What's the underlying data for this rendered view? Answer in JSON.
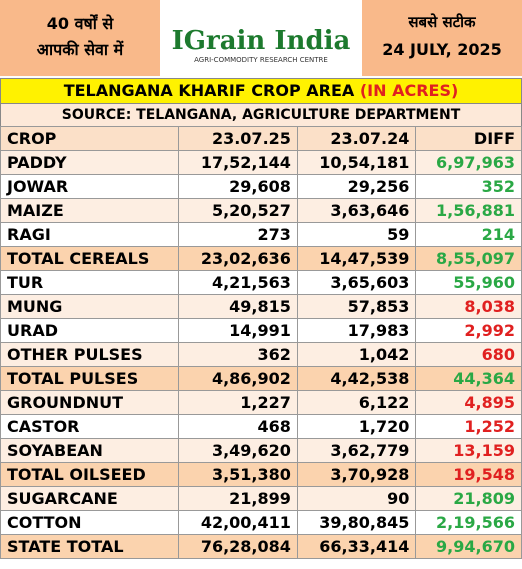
{
  "header": {
    "left_line1": "40 वर्षों से",
    "left_line2": "आपकी सेवा में",
    "logo": "IGrain India",
    "logo_tagline": "AGRI-COMMODITY RESEARCH CENTRE",
    "right_line1": "सबसे सटीक",
    "date": "24 JULY, 2025"
  },
  "title": {
    "main": "TELANGANA KHARIF CROP AREA",
    "unit": "(IN ACRES)"
  },
  "source": "SOURCE: TELANGANA, AGRICULTURE DEPARTMENT",
  "table": {
    "columns": [
      "CROP",
      "23.07.25",
      "23.07.24",
      "DIFF"
    ],
    "rows": [
      {
        "crop": "PADDY",
        "current": "17,52,144",
        "previous": "10,54,181",
        "diff": "6,97,963",
        "diff_color": "#2aa845",
        "total": false
      },
      {
        "crop": "JOWAR",
        "current": "29,608",
        "previous": "29,256",
        "diff": "352",
        "diff_color": "#2aa845",
        "total": false
      },
      {
        "crop": "MAIZE",
        "current": "5,20,527",
        "previous": "3,63,646",
        "diff": "1,56,881",
        "diff_color": "#2aa845",
        "total": false
      },
      {
        "crop": "RAGI",
        "current": "273",
        "previous": "59",
        "diff": "214",
        "diff_color": "#2aa845",
        "total": false
      },
      {
        "crop": "TOTAL CEREALS",
        "current": "23,02,636",
        "previous": "14,47,539",
        "diff": "8,55,097",
        "diff_color": "#2aa845",
        "total": true
      },
      {
        "crop": "TUR",
        "current": "4,21,563",
        "previous": "3,65,603",
        "diff": "55,960",
        "diff_color": "#2aa845",
        "total": false
      },
      {
        "crop": "MUNG",
        "current": "49,815",
        "previous": "57,853",
        "diff": "8,038",
        "diff_color": "#e02020",
        "total": false
      },
      {
        "crop": "URAD",
        "current": "14,991",
        "previous": "17,983",
        "diff": "2,992",
        "diff_color": "#e02020",
        "total": false
      },
      {
        "crop": "OTHER PULSES",
        "current": "362",
        "previous": "1,042",
        "diff": "680",
        "diff_color": "#e02020",
        "total": false
      },
      {
        "crop": "TOTAL PULSES",
        "current": "4,86,902",
        "previous": "4,42,538",
        "diff": "44,364",
        "diff_color": "#2aa845",
        "total": true
      },
      {
        "crop": "GROUNDNUT",
        "current": "1,227",
        "previous": "6,122",
        "diff": "4,895",
        "diff_color": "#e02020",
        "total": false
      },
      {
        "crop": "CASTOR",
        "current": "468",
        "previous": "1,720",
        "diff": "1,252",
        "diff_color": "#e02020",
        "total": false
      },
      {
        "crop": "SOYABEAN",
        "current": "3,49,620",
        "previous": "3,62,779",
        "diff": "13,159",
        "diff_color": "#e02020",
        "total": false
      },
      {
        "crop": "TOTAL OILSEED",
        "current": "3,51,380",
        "previous": "3,70,928",
        "diff": "19,548",
        "diff_color": "#e02020",
        "total": true
      },
      {
        "crop": "SUGARCANE",
        "current": "21,899",
        "previous": "90",
        "diff": "21,809",
        "diff_color": "#2aa845",
        "total": false
      },
      {
        "crop": "COTTON",
        "current": "42,00,411",
        "previous": "39,80,845",
        "diff": "2,19,566",
        "diff_color": "#2aa845",
        "total": false
      },
      {
        "crop": "STATE TOTAL",
        "current": "76,28,084",
        "previous": "66,33,414",
        "diff": "9,94,670",
        "diff_color": "#2aa845",
        "total": true
      }
    ]
  }
}
